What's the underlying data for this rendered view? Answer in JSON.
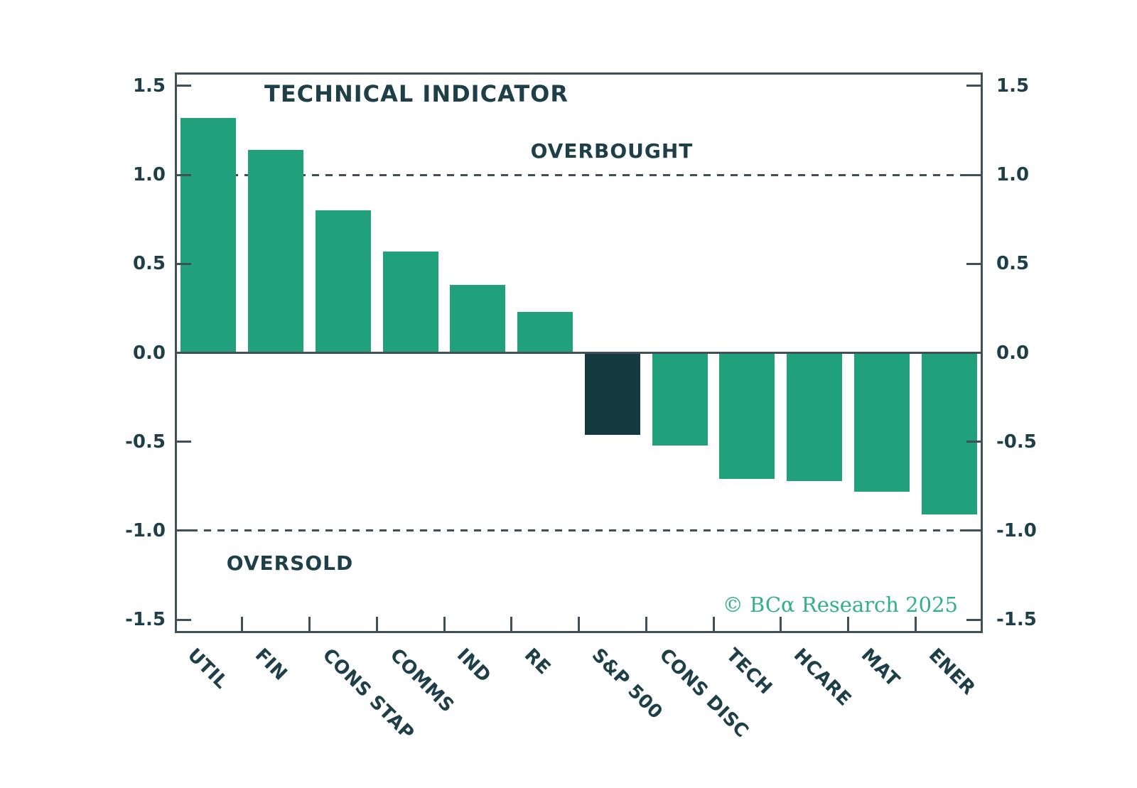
{
  "watermark": {
    "text": "© BCα Research 2025"
  },
  "chart_data": {
    "type": "bar",
    "title": "TECHNICAL INDICATOR",
    "categories": [
      "UTIL",
      "FIN",
      "CONS STAP",
      "COMMS",
      "IND",
      "RE",
      "S&P 500",
      "CONS DISC",
      "TECH",
      "HCARE",
      "MAT",
      "ENER"
    ],
    "values": [
      1.32,
      1.14,
      0.8,
      0.57,
      0.38,
      0.23,
      -0.46,
      -0.52,
      -0.71,
      -0.72,
      -0.78,
      -0.91
    ],
    "highlight_category": "S&P 500",
    "xlabel": "",
    "ylabel": "",
    "ylim": [
      -1.575,
      1.575
    ],
    "ytick_values": [
      1.5,
      1.0,
      0.5,
      0.0,
      -0.5,
      -1.0,
      -1.5
    ],
    "ytick_labels": [
      "1.5",
      "1.0",
      "0.5",
      "0.0",
      "-0.5",
      "-1.0",
      "-1.5"
    ],
    "y_axis_sides": "both",
    "grid": "off",
    "legend": "none",
    "reference_lines": [
      {
        "value": 1.0,
        "label": "OVERBOUGHT",
        "style": "dashed"
      },
      {
        "value": -1.0,
        "label": "OVERSOLD",
        "style": "dashed"
      }
    ],
    "colors": {
      "bar": "#20a17c",
      "highlight_bar": "#143a40",
      "axis": "#3f5059",
      "text": "#1e3f48",
      "watermark": "#31b184"
    }
  }
}
